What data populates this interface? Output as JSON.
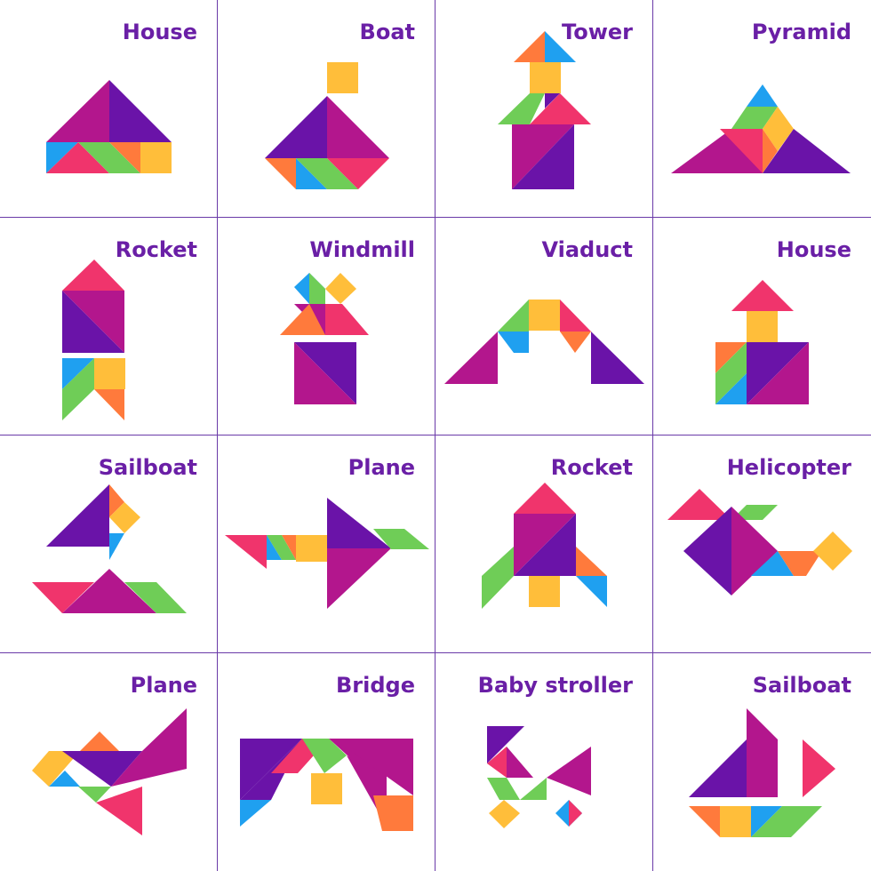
{
  "colors": {
    "title": "#6a1fa6",
    "magenta": "#b3168d",
    "purple": "#6a13a8",
    "pink": "#f0346c",
    "orange": "#ff7a3c",
    "yellow": "#ffbe3a",
    "green": "#6fcd57",
    "blue": "#1fa0f0",
    "grid": "#6a3aa8"
  },
  "cards": [
    {
      "title": "House"
    },
    {
      "title": "Boat"
    },
    {
      "title": "Tower"
    },
    {
      "title": "Pyramid"
    },
    {
      "title": "Rocket"
    },
    {
      "title": "Windmill"
    },
    {
      "title": "Viaduct"
    },
    {
      "title": "House"
    },
    {
      "title": "Sailboat"
    },
    {
      "title": "Plane"
    },
    {
      "title": "Rocket"
    },
    {
      "title": "Helicopter"
    },
    {
      "title": "Plane"
    },
    {
      "title": "Bridge"
    },
    {
      "title": "Baby stroller"
    },
    {
      "title": "Sailboat"
    }
  ]
}
